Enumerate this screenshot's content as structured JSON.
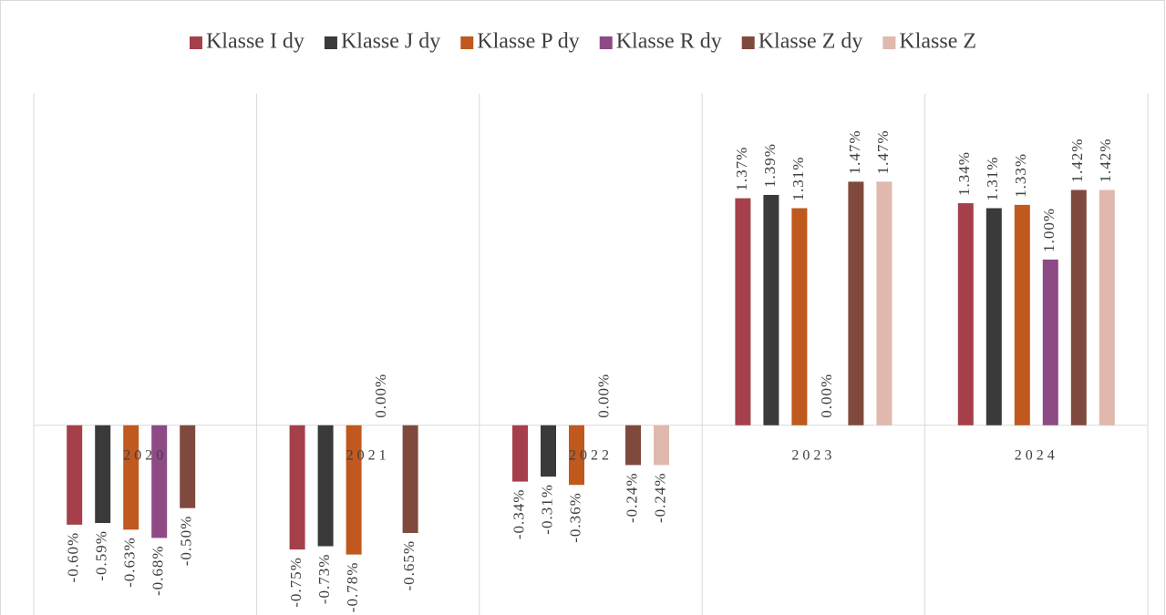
{
  "chart_data": {
    "type": "bar",
    "categories": [
      "2020",
      "2021",
      "2022",
      "2023",
      "2024"
    ],
    "series": [
      {
        "name": "Klasse I dy",
        "color": "#a5404a",
        "values": [
          -0.6,
          -0.75,
          -0.34,
          1.37,
          1.34
        ],
        "value_labels": [
          "-0.60%",
          "-0.75%",
          "-0.34%",
          "1.37%",
          "1.34%"
        ]
      },
      {
        "name": "Klasse J dy",
        "color": "#3a3a3a",
        "values": [
          -0.59,
          -0.73,
          -0.31,
          1.39,
          1.31
        ],
        "value_labels": [
          "-0.59%",
          "-0.73%",
          "-0.31%",
          "1.39%",
          "1.31%"
        ]
      },
      {
        "name": "Klasse P dy",
        "color": "#c0591d",
        "values": [
          -0.63,
          -0.78,
          -0.36,
          1.31,
          1.33
        ],
        "value_labels": [
          "-0.63%",
          "-0.78%",
          "-0.36%",
          "1.31%",
          "1.33%"
        ]
      },
      {
        "name": "Klasse R dy",
        "color": "#8e4a85",
        "values": [
          -0.68,
          0,
          0,
          0,
          1.0
        ],
        "value_labels": [
          "-0.68%",
          "0.00%",
          "0.00%",
          "0.00%",
          "1.00%"
        ]
      },
      {
        "name": "Klasse Z dy",
        "color": "#7f4a3d",
        "values": [
          -0.5,
          -0.65,
          -0.24,
          1.47,
          1.42
        ],
        "value_labels": [
          "-0.50%",
          "-0.65%",
          "-0.24%",
          "1.47%",
          "1.42%"
        ]
      },
      {
        "name": "Klasse Z",
        "color": "#e0b8ad",
        "values": [
          null,
          null,
          -0.24,
          1.47,
          1.42
        ],
        "value_labels": [
          null,
          null,
          "-0.24%",
          "1.47%",
          "1.42%"
        ]
      }
    ],
    "ylim": [
      -1.2,
      2.0
    ],
    "legend": "top"
  }
}
